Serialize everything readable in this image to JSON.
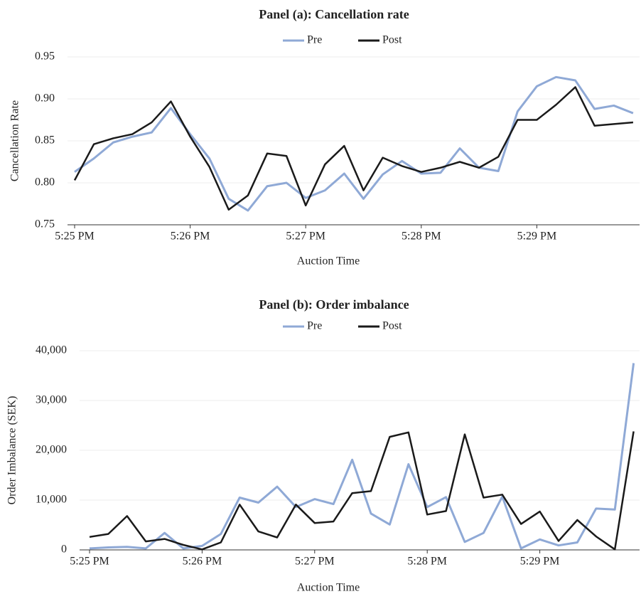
{
  "chart_data": [
    {
      "type": "line",
      "title": "Panel (a): Cancellation rate",
      "x_label": "Auction Time",
      "y_label": "Cancellation Rate",
      "categories": [
        "5:25 PM",
        null,
        null,
        null,
        null,
        null,
        "5:26 PM",
        null,
        null,
        null,
        null,
        null,
        "5:27 PM",
        null,
        null,
        null,
        null,
        null,
        "5:28 PM",
        null,
        null,
        null,
        null,
        null,
        "5:29 PM",
        null,
        null,
        null,
        null,
        null
      ],
      "series": [
        {
          "name": "Pre",
          "color": "#8fa9d6",
          "values": [
            0.813,
            0.829,
            0.848,
            0.855,
            0.86,
            0.889,
            0.858,
            0.829,
            0.781,
            0.767,
            0.796,
            0.8,
            0.782,
            0.791,
            0.811,
            0.781,
            0.81,
            0.826,
            0.811,
            0.812,
            0.841,
            0.818,
            0.814,
            0.885,
            0.915,
            0.926,
            0.922,
            0.888,
            0.892,
            0.883
          ]
        },
        {
          "name": "Post",
          "color": "#1a1a1a",
          "values": [
            0.803,
            0.846,
            0.853,
            0.858,
            0.872,
            0.897,
            0.855,
            0.819,
            0.768,
            0.785,
            0.835,
            0.832,
            0.773,
            0.822,
            0.844,
            0.791,
            0.83,
            0.82,
            0.813,
            0.818,
            0.825,
            0.818,
            0.831,
            0.875,
            0.875,
            0.893,
            0.914,
            0.868,
            0.87,
            0.872
          ]
        }
      ],
      "ylim": [
        0.75,
        0.95
      ],
      "yticks": [
        0.75,
        {
          "value": 0.8,
          "label": "0.80"
        },
        0.85,
        {
          "value": 0.9,
          "label": "0.90"
        },
        0.95
      ],
      "grid": true,
      "legend": "top"
    },
    {
      "type": "line",
      "title": "Panel (b): Order imbalance",
      "x_label": "Auction Time",
      "y_label": "Order Imbalance (SEK)",
      "categories": [
        "5:25 PM",
        null,
        null,
        null,
        null,
        null,
        "5:26 PM",
        null,
        null,
        null,
        null,
        null,
        "5:27 PM",
        null,
        null,
        null,
        null,
        null,
        "5:28 PM",
        null,
        null,
        null,
        null,
        null,
        "5:29 PM",
        null,
        null,
        null,
        null,
        null
      ],
      "series": [
        {
          "name": "Pre",
          "color": "#8fa9d6",
          "values": [
            300,
            500,
            600,
            300,
            3400,
            300,
            800,
            3200,
            10500,
            9500,
            12700,
            8600,
            10200,
            9200,
            18100,
            7300,
            5100,
            17200,
            8600,
            10600,
            1600,
            3400,
            10700,
            300,
            2100,
            900,
            1500,
            8300,
            8100,
            37500
          ]
        },
        {
          "name": "Post",
          "color": "#1a1a1a",
          "values": [
            2600,
            3200,
            6800,
            1700,
            2200,
            1000,
            100,
            1500,
            9100,
            3700,
            2500,
            9100,
            5400,
            5700,
            11400,
            11800,
            22700,
            23600,
            7100,
            7800,
            23200,
            10500,
            11100,
            5200,
            7700,
            1800,
            6000,
            2700,
            100,
            23800
          ]
        }
      ],
      "ylim": [
        0,
        40000
      ],
      "yticks": [
        0,
        {
          "value": 10000,
          "label": "10,000"
        },
        {
          "value": 20000,
          "label": "20,000"
        },
        {
          "value": 30000,
          "label": "30,000"
        },
        {
          "value": 40000,
          "label": "40,000"
        }
      ],
      "grid": true,
      "legend": "top"
    }
  ]
}
